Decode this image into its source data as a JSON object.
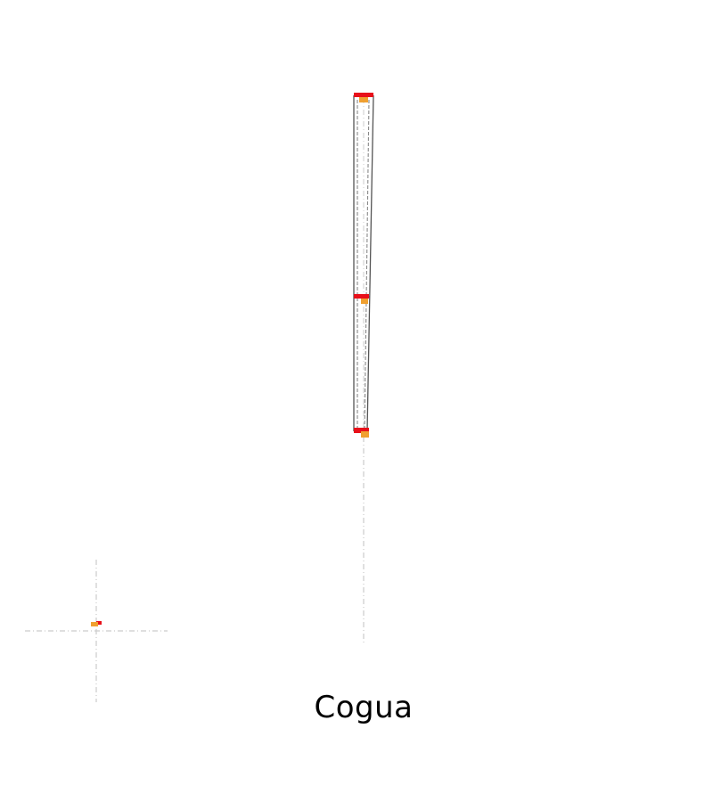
{
  "place": {
    "name": "Cogua"
  },
  "colors": {
    "background": "#ffffff",
    "road_outline": "#555555",
    "road_dash": "#888888",
    "guide_line": "#cccccc",
    "marker_red": "#e8101a",
    "marker_orange": "#f0a030"
  },
  "icons": {
    "location_marker": "location-marker-icon"
  }
}
